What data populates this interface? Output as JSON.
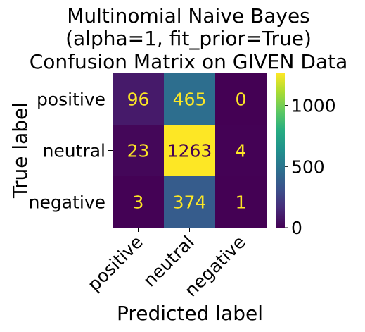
{
  "chart_data": {
    "type": "heatmap",
    "title_lines": [
      "Multinomial Naive Bayes",
      "(alpha=1, fit_prior=True)",
      "Confusion Matrix on GIVEN Data"
    ],
    "xlabel": "Predicted label",
    "ylabel": "True label",
    "x_categories": [
      "positive",
      "neutral",
      "negative"
    ],
    "y_categories": [
      "positive",
      "neutral",
      "negative"
    ],
    "values": [
      [
        96,
        465,
        0
      ],
      [
        23,
        1263,
        4
      ],
      [
        3,
        374,
        1
      ]
    ],
    "colormap": "viridis",
    "vmin": 0,
    "vmax": 1263,
    "colorbar_ticks": [
      0,
      500,
      1000
    ],
    "text_color_high": "#440154",
    "text_color_low": "#fde725"
  }
}
